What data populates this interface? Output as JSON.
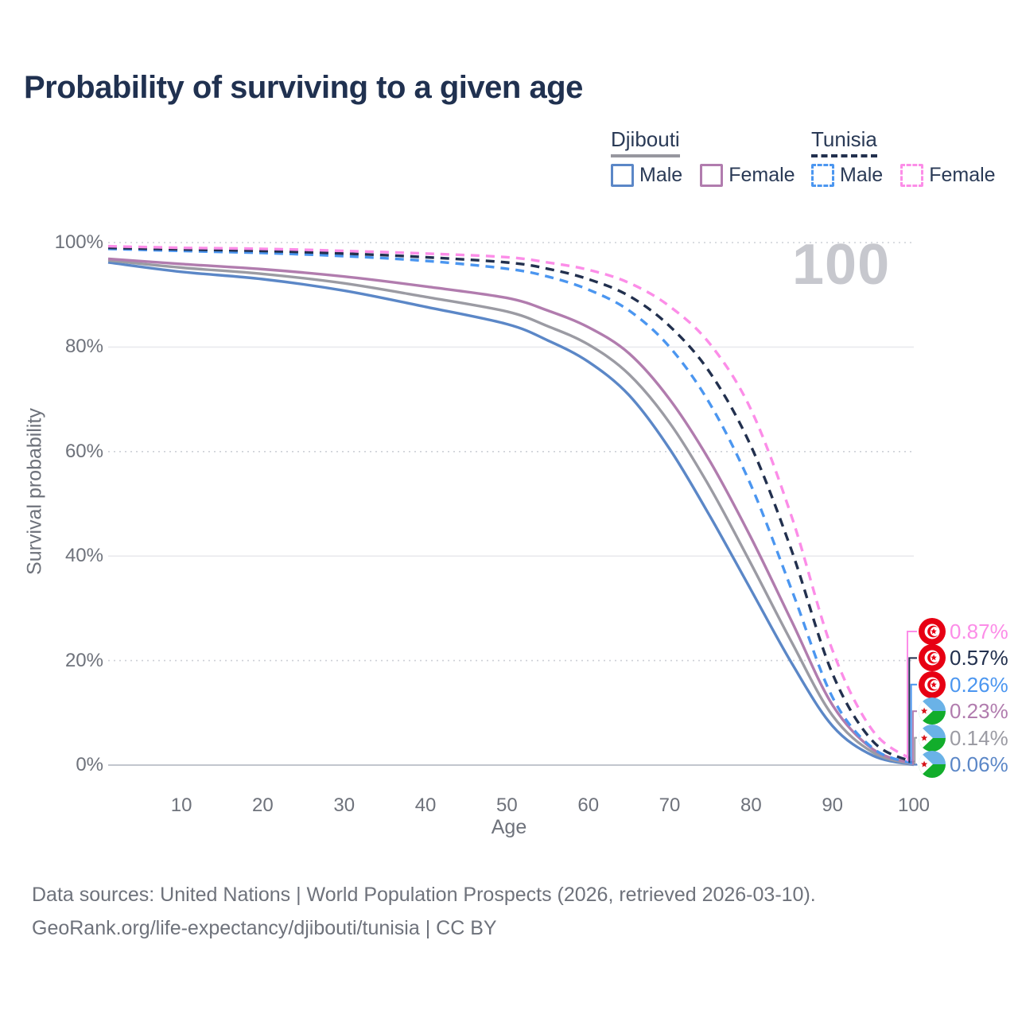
{
  "title": "Probability of surviving to a given age",
  "watermark": "100",
  "axes": {
    "y_label": "Survival probability",
    "y_ticks": [
      "100%",
      "80%",
      "60%",
      "40%",
      "20%",
      "0%"
    ],
    "x_label": "Age",
    "x_ticks": [
      "10",
      "20",
      "30",
      "40",
      "50",
      "60",
      "70",
      "80",
      "90",
      "100"
    ]
  },
  "legend": {
    "groups": [
      {
        "country": "Djibouti",
        "line_style": "solid",
        "underline_color": "#97979f",
        "items": [
          {
            "label": "Male",
            "color": "#5b87c7"
          },
          {
            "label": "Female",
            "color": "#b17cae"
          }
        ]
      },
      {
        "country": "Tunisia",
        "line_style": "dashed",
        "underline_color": "#22304e",
        "items": [
          {
            "label": "Male",
            "color": "#4b96f0"
          },
          {
            "label": "Female",
            "color": "#fc8de8"
          }
        ]
      }
    ]
  },
  "footer": {
    "line1": "Data sources: United Nations | World Population Prospects (2026, retrieved 2026-03-10).",
    "line2": "GeoRank.org/life-expectancy/djibouti/tunisia | CC BY"
  },
  "flag_colors": {
    "tunisia_red": "#e70013",
    "djibouti_blue": "#6ab2e7",
    "djibouti_green": "#12ad2b",
    "star_red": "#d7141a"
  },
  "chart_data": {
    "type": "line",
    "title": "Probability of surviving to a given age",
    "xlabel": "Age",
    "ylabel": "Survival probability",
    "xlim": [
      1,
      100
    ],
    "ylim": [
      0,
      100
    ],
    "y_unit": "%",
    "grid": "horizontal",
    "legend_position": "top-right",
    "x": [
      1,
      10,
      20,
      30,
      40,
      50,
      55,
      60,
      65,
      70,
      75,
      80,
      85,
      90,
      95,
      100
    ],
    "series": [
      {
        "key": "tunisia_female",
        "name": "Tunisia Female",
        "country": "Tunisia",
        "sex": "Female",
        "line_style": "dashed",
        "color": "#fc8de8",
        "flag": "tunisia",
        "end_label": "0.87%",
        "values": [
          99.3,
          99.0,
          98.8,
          98.4,
          97.9,
          97.2,
          96.2,
          94.8,
          92.3,
          87.8,
          80.5,
          68.0,
          47.5,
          22.0,
          6.5,
          0.87
        ]
      },
      {
        "key": "tunisia_both",
        "name": "Tunisia Both sexes",
        "country": "Tunisia",
        "sex": "Both sexes",
        "line_style": "dashed",
        "color": "#22304e",
        "flag": "tunisia",
        "end_label": "0.57%",
        "values": [
          99.0,
          98.7,
          98.4,
          97.9,
          97.2,
          96.2,
          95.0,
          93.0,
          89.8,
          84.0,
          75.0,
          61.0,
          41.0,
          17.5,
          4.5,
          0.57
        ]
      },
      {
        "key": "tunisia_male",
        "name": "Tunisia Male",
        "country": "Tunisia",
        "sex": "Male",
        "line_style": "dashed",
        "color": "#4b96f0",
        "flag": "tunisia",
        "end_label": "0.26%",
        "values": [
          98.8,
          98.4,
          98.0,
          97.4,
          96.5,
          95.0,
          93.5,
          91.0,
          87.0,
          80.0,
          69.0,
          53.5,
          33.5,
          13.0,
          3.2,
          0.26
        ]
      },
      {
        "key": "djibouti_female",
        "name": "Djibouti Female",
        "country": "Djibouti",
        "sex": "Female",
        "line_style": "solid",
        "color": "#b17cae",
        "flag": "djibouti",
        "end_label": "0.23%",
        "values": [
          96.9,
          95.9,
          94.9,
          93.5,
          91.6,
          89.4,
          87.0,
          83.8,
          78.8,
          70.0,
          58.0,
          43.5,
          27.5,
          11.5,
          3.0,
          0.23
        ]
      },
      {
        "key": "djibouti_both",
        "name": "Djibouti Both sexes",
        "country": "Djibouti",
        "sex": "Both sexes",
        "line_style": "solid",
        "color": "#9b9ba3",
        "flag": "djibouti",
        "end_label": "0.14%",
        "values": [
          96.6,
          95.2,
          94.0,
          92.2,
          89.6,
          86.8,
          84.0,
          80.5,
          74.8,
          65.5,
          53.0,
          38.5,
          23.5,
          9.5,
          2.4,
          0.14
        ]
      },
      {
        "key": "djibouti_male",
        "name": "Djibouti Male",
        "country": "Djibouti",
        "sex": "Male",
        "line_style": "solid",
        "color": "#5b87c7",
        "flag": "djibouti",
        "end_label": "0.06%",
        "values": [
          96.2,
          94.4,
          93.0,
          90.8,
          87.7,
          84.4,
          81.3,
          77.2,
          70.8,
          60.5,
          47.5,
          33.5,
          19.5,
          7.5,
          1.8,
          0.06
        ]
      }
    ]
  }
}
